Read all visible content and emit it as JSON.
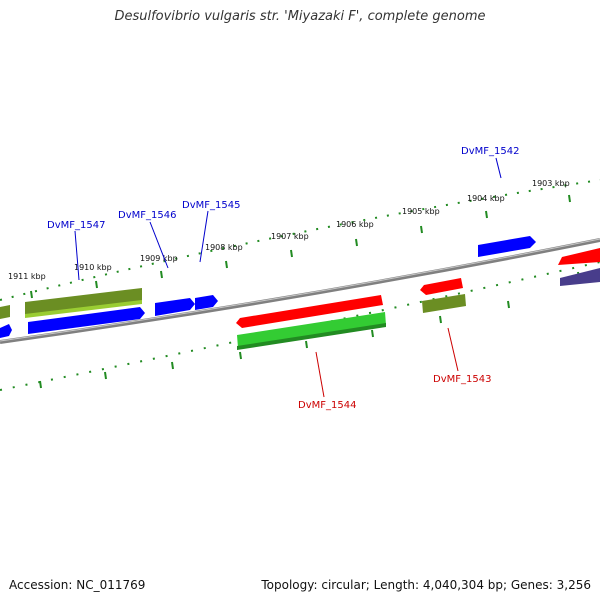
{
  "title": "Desulfovibrio vulgaris str. 'Miyazaki F', complete genome",
  "footer": {
    "accession": "Accession: NC_011769",
    "stats": "Topology: circular; Length: 4,040,304 bp; Genes: 3,256"
  },
  "colors": {
    "forward_cds": "#ff0000",
    "reverse_cds": "#0000ff",
    "forward_gene": "#33cc33",
    "reverse_gene": "#6b8e23",
    "other": "#483d8b",
    "ticks": "#228b22",
    "backbone": "#808080",
    "label_forward": "#cc0000",
    "label_reverse": "#0000cc"
  },
  "kbp_labels": [
    "1903 kbp",
    "1904 kbp",
    "1905 kbp",
    "1906 kbp",
    "1907 kbp",
    "1908 kbp",
    "1909 kbp",
    "1910 kbp",
    "1911 kbp"
  ],
  "gene_labels": [
    "DvMF_1542",
    "DvMF_1543",
    "DvMF_1544",
    "DvMF_1545",
    "DvMF_1546",
    "DvMF_1547"
  ]
}
